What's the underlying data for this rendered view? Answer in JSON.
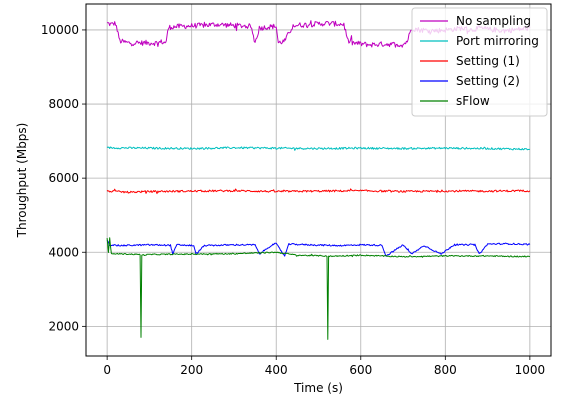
{
  "chart_data": {
    "type": "line",
    "xlabel": "Time (s)",
    "ylabel": "Throughput (Mbps)",
    "xlim": [
      -50,
      1050
    ],
    "ylim": [
      1200,
      10700
    ],
    "xticks": [
      0,
      200,
      400,
      600,
      800,
      1000
    ],
    "yticks": [
      2000,
      4000,
      6000,
      8000,
      10000
    ],
    "grid": true,
    "legend_position": "top-right",
    "series": [
      {
        "name": "No sampling",
        "color": "#bf00bf",
        "noise": 70,
        "values": [
          [
            0,
            10180
          ],
          [
            10,
            10150
          ],
          [
            20,
            10180
          ],
          [
            30,
            9700
          ],
          [
            50,
            9650
          ],
          [
            120,
            9650
          ],
          [
            130,
            9680
          ],
          [
            135,
            9650
          ],
          [
            140,
            9700
          ],
          [
            145,
            10050
          ],
          [
            150,
            10080
          ],
          [
            180,
            10100
          ],
          [
            220,
            10120
          ],
          [
            260,
            10150
          ],
          [
            300,
            10120
          ],
          [
            340,
            10100
          ],
          [
            350,
            9650
          ],
          [
            360,
            10050
          ],
          [
            380,
            10080
          ],
          [
            400,
            10100
          ],
          [
            405,
            9650
          ],
          [
            420,
            9700
          ],
          [
            440,
            10120
          ],
          [
            480,
            10150
          ],
          [
            520,
            10180
          ],
          [
            560,
            10150
          ],
          [
            570,
            9700
          ],
          [
            580,
            9650
          ],
          [
            620,
            9600
          ],
          [
            660,
            9620
          ],
          [
            700,
            9600
          ],
          [
            710,
            9700
          ],
          [
            720,
            10050
          ],
          [
            740,
            10000
          ],
          [
            780,
            9980
          ],
          [
            800,
            10000
          ],
          [
            820,
            10020
          ],
          [
            840,
            10050
          ],
          [
            860,
            10000
          ],
          [
            880,
            10050
          ],
          [
            900,
            10020
          ],
          [
            920,
            10000
          ],
          [
            940,
            9980
          ],
          [
            960,
            10000
          ],
          [
            1000,
            10050
          ]
        ]
      },
      {
        "name": "Port mirroring",
        "color": "#00bfbf",
        "noise": 25,
        "values": [
          [
            0,
            6820
          ],
          [
            100,
            6810
          ],
          [
            200,
            6800
          ],
          [
            300,
            6820
          ],
          [
            400,
            6810
          ],
          [
            500,
            6800
          ],
          [
            600,
            6810
          ],
          [
            700,
            6800
          ],
          [
            800,
            6810
          ],
          [
            900,
            6800
          ],
          [
            1000,
            6780
          ]
        ]
      },
      {
        "name": "Setting (1)",
        "color": "#ff0000",
        "noise": 25,
        "values": [
          [
            0,
            5650
          ],
          [
            50,
            5620
          ],
          [
            100,
            5640
          ],
          [
            200,
            5650
          ],
          [
            300,
            5660
          ],
          [
            400,
            5640
          ],
          [
            500,
            5650
          ],
          [
            600,
            5660
          ],
          [
            700,
            5640
          ],
          [
            800,
            5650
          ],
          [
            900,
            5650
          ],
          [
            1000,
            5660
          ]
        ]
      },
      {
        "name": "Setting (2)",
        "color": "#0000ff",
        "noise": 20,
        "values": [
          [
            0,
            4350
          ],
          [
            5,
            4200
          ],
          [
            30,
            4180
          ],
          [
            100,
            4200
          ],
          [
            150,
            4190
          ],
          [
            155,
            3950
          ],
          [
            165,
            4200
          ],
          [
            205,
            4180
          ],
          [
            210,
            3950
          ],
          [
            230,
            4180
          ],
          [
            300,
            4200
          ],
          [
            350,
            4200
          ],
          [
            360,
            3950
          ],
          [
            390,
            4200
          ],
          [
            400,
            4230
          ],
          [
            420,
            3900
          ],
          [
            430,
            4220
          ],
          [
            480,
            4200
          ],
          [
            550,
            4180
          ],
          [
            600,
            4200
          ],
          [
            650,
            4190
          ],
          [
            660,
            3900
          ],
          [
            700,
            4200
          ],
          [
            720,
            3950
          ],
          [
            750,
            4180
          ],
          [
            790,
            3950
          ],
          [
            820,
            4200
          ],
          [
            870,
            4200
          ],
          [
            880,
            3950
          ],
          [
            900,
            4220
          ],
          [
            950,
            4230
          ],
          [
            1000,
            4210
          ]
        ]
      },
      {
        "name": "sFlow",
        "color": "#008000",
        "noise": 15,
        "values": [
          [
            0,
            4380
          ],
          [
            3,
            3980
          ],
          [
            6,
            4380
          ],
          [
            10,
            3950
          ],
          [
            20,
            3960
          ],
          [
            78,
            3940
          ],
          [
            80,
            1700
          ],
          [
            82,
            3920
          ],
          [
            100,
            3940
          ],
          [
            200,
            3950
          ],
          [
            300,
            3960
          ],
          [
            400,
            4000
          ],
          [
            450,
            3920
          ],
          [
            520,
            3900
          ],
          [
            522,
            1650
          ],
          [
            524,
            3890
          ],
          [
            600,
            3920
          ],
          [
            700,
            3880
          ],
          [
            800,
            3900
          ],
          [
            900,
            3900
          ],
          [
            1000,
            3880
          ]
        ]
      }
    ]
  }
}
